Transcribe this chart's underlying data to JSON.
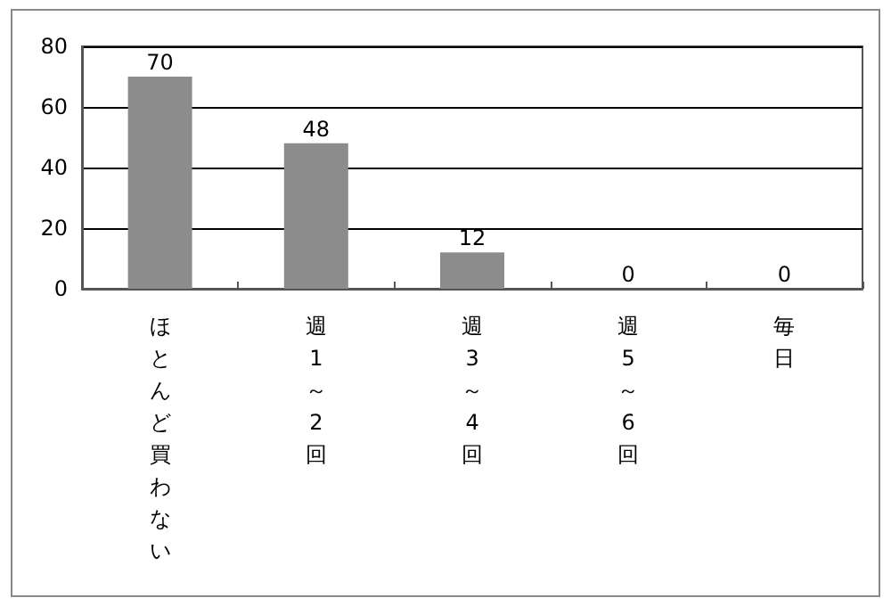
{
  "chart_data": {
    "type": "bar",
    "categories": [
      "ほとんど買わない",
      "週1～2回",
      "週3～4回",
      "週5～6回",
      "毎日"
    ],
    "values": [
      70,
      48,
      12,
      0,
      0
    ],
    "color": "#8c8c8c",
    "ylim": [
      0,
      80
    ],
    "yticks": [
      0,
      20,
      40,
      60,
      80
    ],
    "grid": "y",
    "data_labels": true
  }
}
